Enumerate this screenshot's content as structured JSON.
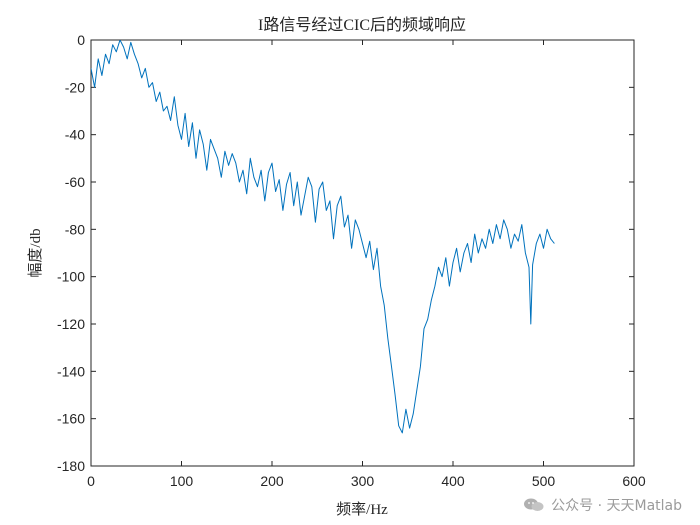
{
  "chart_data": {
    "type": "line",
    "title": "I路信号经过CIC后的频域响应",
    "xlabel": "频率/Hz",
    "ylabel": "幅度/db",
    "xlim": [
      0,
      600
    ],
    "ylim": [
      -180,
      0
    ],
    "xticks": [
      0,
      100,
      200,
      300,
      400,
      500,
      600
    ],
    "yticks": [
      0,
      -20,
      -40,
      -60,
      -80,
      -100,
      -120,
      -140,
      -160,
      -180
    ],
    "grid": false,
    "series": [
      {
        "color": "#0072bd",
        "x": [
          0,
          4,
          8,
          12,
          16,
          20,
          24,
          28,
          32,
          36,
          40,
          44,
          48,
          52,
          56,
          60,
          64,
          68,
          72,
          76,
          80,
          84,
          88,
          92,
          96,
          100,
          104,
          108,
          112,
          116,
          120,
          124,
          128,
          132,
          136,
          140,
          144,
          148,
          152,
          156,
          160,
          164,
          168,
          172,
          176,
          180,
          184,
          188,
          192,
          196,
          200,
          204,
          208,
          212,
          216,
          220,
          224,
          228,
          232,
          236,
          240,
          244,
          248,
          252,
          256,
          260,
          264,
          268,
          272,
          276,
          280,
          284,
          288,
          292,
          296,
          300,
          304,
          308,
          312,
          316,
          320,
          324,
          328,
          332,
          336,
          340,
          344,
          348,
          352,
          356,
          360,
          364,
          368,
          372,
          376,
          380,
          384,
          388,
          392,
          396,
          400,
          404,
          408,
          412,
          416,
          420,
          424,
          428,
          432,
          436,
          440,
          444,
          448,
          452,
          456,
          460,
          464,
          468,
          472,
          476,
          480,
          484,
          486,
          488,
          492,
          496,
          500,
          504,
          508,
          512
        ],
        "y": [
          -12,
          -20,
          -8,
          -15,
          -6,
          -10,
          -2,
          -5,
          0,
          -3,
          -8,
          -1,
          -6,
          -10,
          -16,
          -12,
          -20,
          -18,
          -26,
          -22,
          -30,
          -28,
          -34,
          -24,
          -36,
          -42,
          -31,
          -45,
          -35,
          -50,
          -38,
          -44,
          -55,
          -42,
          -46,
          -50,
          -58,
          -47,
          -53,
          -48,
          -52,
          -60,
          -55,
          -65,
          -50,
          -58,
          -62,
          -55,
          -68,
          -56,
          -52,
          -64,
          -59,
          -72,
          -61,
          -56,
          -70,
          -60,
          -74,
          -66,
          -58,
          -62,
          -77,
          -63,
          -60,
          -72,
          -68,
          -84,
          -70,
          -66,
          -79,
          -74,
          -88,
          -76,
          -80,
          -86,
          -92,
          -85,
          -97,
          -88,
          -104,
          -112,
          -126,
          -138,
          -150,
          -163,
          -166,
          -156,
          -164,
          -158,
          -148,
          -138,
          -122,
          -118,
          -110,
          -104,
          -96,
          -100,
          -92,
          -104,
          -94,
          -88,
          -98,
          -90,
          -86,
          -94,
          -82,
          -90,
          -84,
          -88,
          -80,
          -86,
          -78,
          -84,
          -76,
          -80,
          -88,
          -82,
          -85,
          -78,
          -90,
          -96,
          -120,
          -95,
          -86,
          -82,
          -88,
          -80,
          -84,
          -86
        ]
      }
    ]
  },
  "watermark": {
    "text": "公众号 · 天天Matlab",
    "icon": "wechat-icon"
  }
}
